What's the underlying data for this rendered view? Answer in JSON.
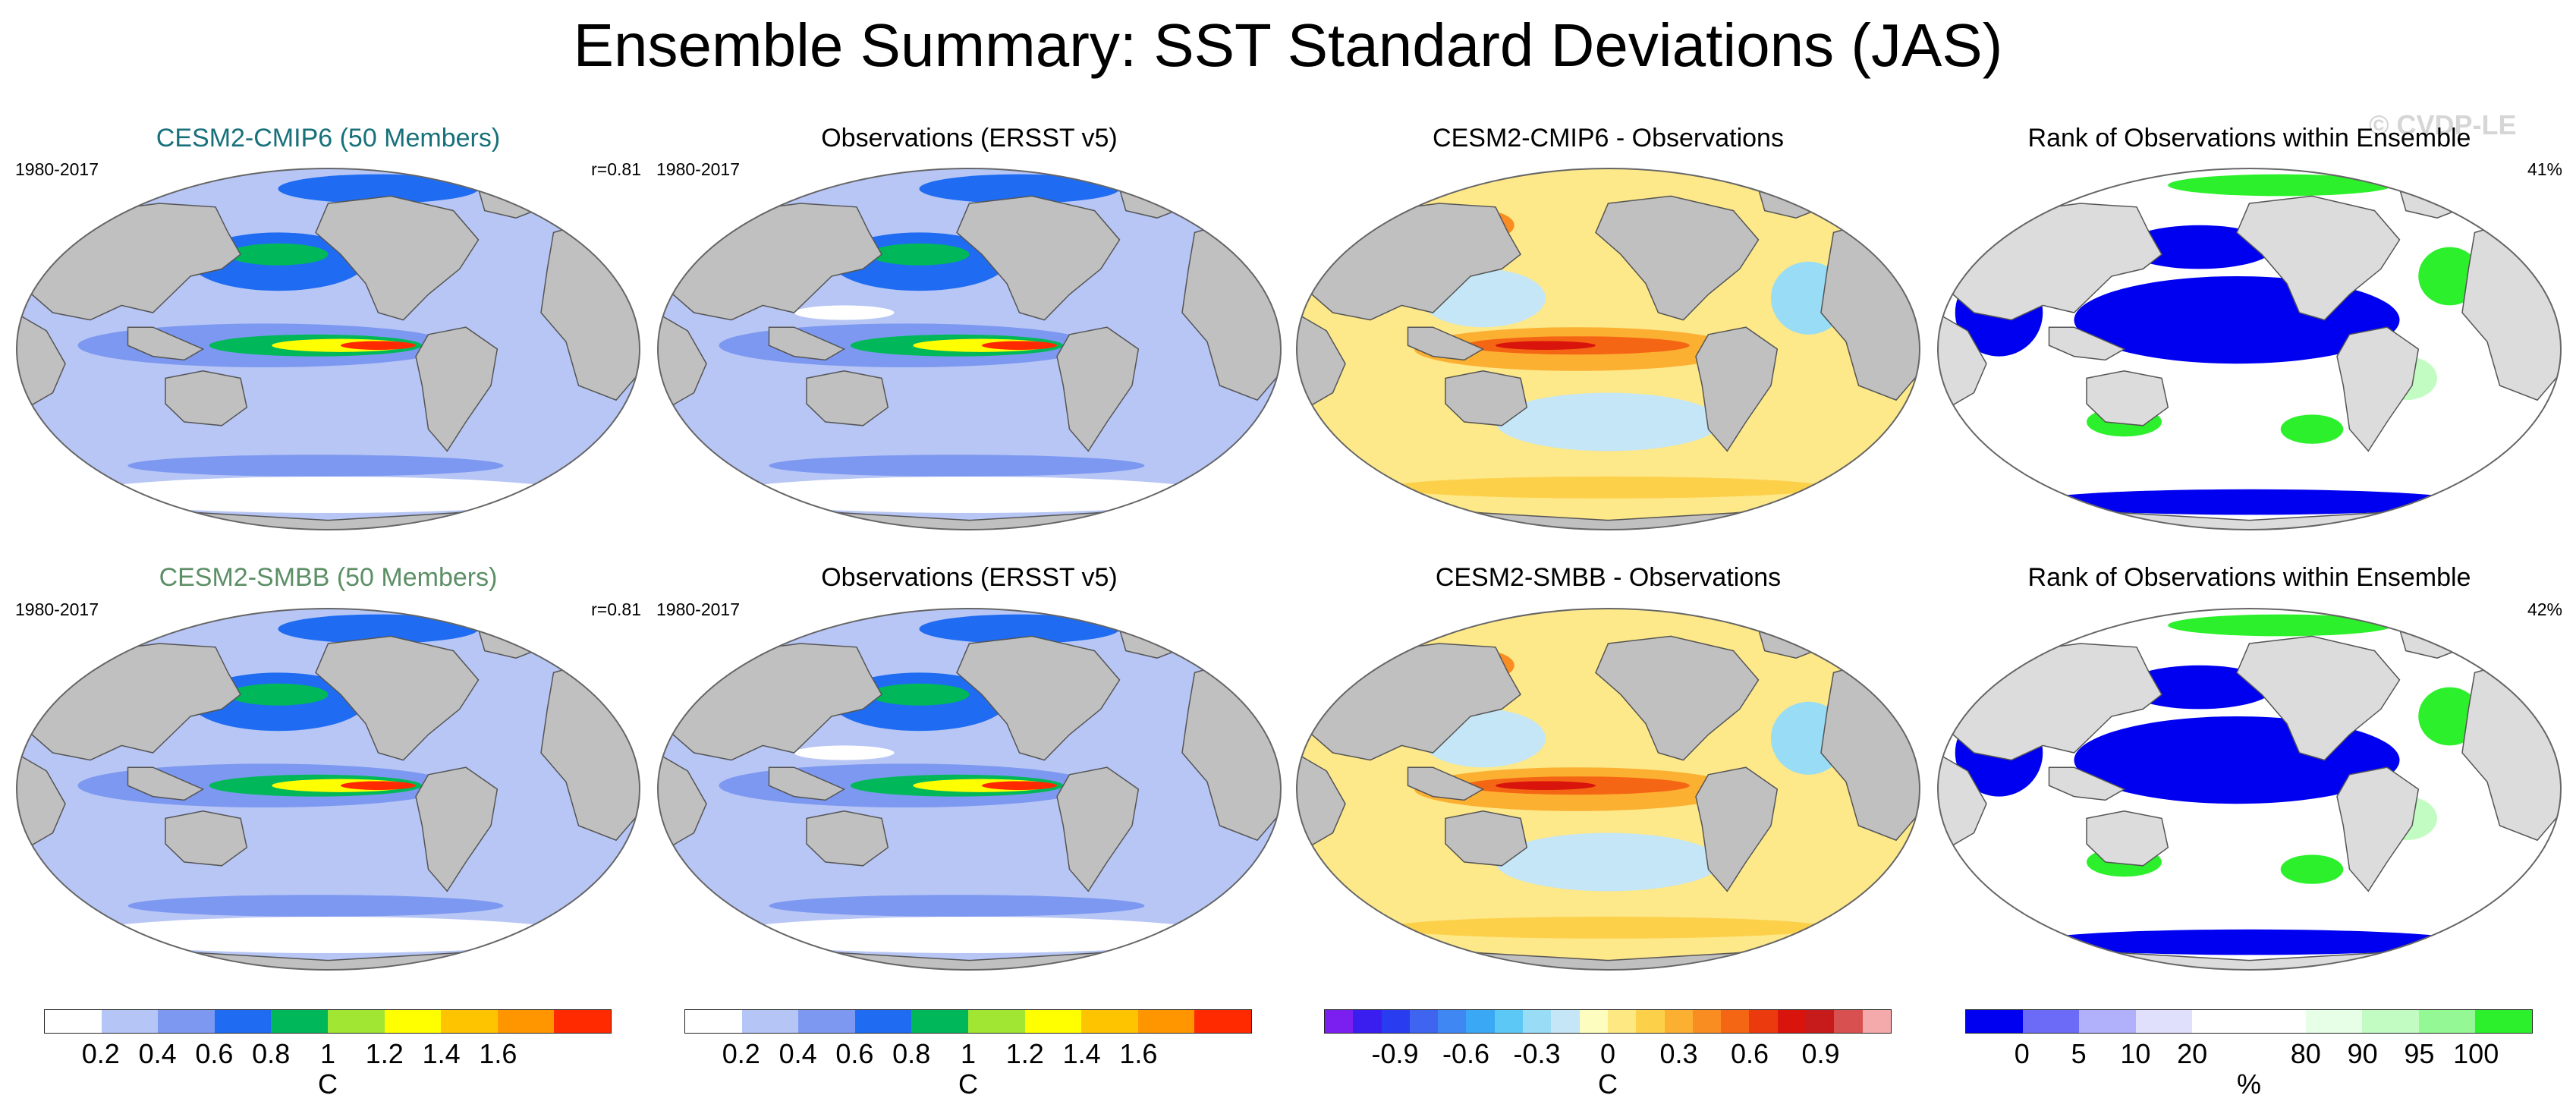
{
  "title": "Ensemble Summary: SST Standard Deviations (JAS)",
  "watermark": "© CVDP-LE",
  "colors": {
    "title_teal": "#17707a",
    "title_green": "#5c8f66",
    "land": "#c0c0c0",
    "ocean_base": "#b7c6f5"
  },
  "rows": [
    {
      "panels": [
        {
          "title": "CESM2-CMIP6 (50 Members)",
          "left": "1980-2017",
          "right": "r=0.81",
          "kind": "std",
          "title_color": "#17707a",
          "icon": "world-map-icon"
        },
        {
          "title": "Observations (ERSST v5)",
          "left": "1980-2017",
          "right": "",
          "kind": "std_obs",
          "title_color": "#000000",
          "icon": "world-map-icon"
        },
        {
          "title": "CESM2-CMIP6 - Observations",
          "left": "",
          "right": "",
          "kind": "diff",
          "title_color": "#000000",
          "icon": "world-map-icon"
        },
        {
          "title": "Rank of Observations within Ensemble",
          "left": "",
          "right": "41%",
          "kind": "rank",
          "title_color": "#000000",
          "icon": "world-map-icon"
        }
      ]
    },
    {
      "panels": [
        {
          "title": "CESM2-SMBB (50 Members)",
          "left": "1980-2017",
          "right": "r=0.81",
          "kind": "std",
          "title_color": "#5c8f66",
          "icon": "world-map-icon"
        },
        {
          "title": "Observations (ERSST v5)",
          "left": "1980-2017",
          "right": "",
          "kind": "std_obs",
          "title_color": "#000000",
          "icon": "world-map-icon"
        },
        {
          "title": "CESM2-SMBB - Observations",
          "left": "",
          "right": "",
          "kind": "diff",
          "title_color": "#000000",
          "icon": "world-map-icon"
        },
        {
          "title": "Rank of Observations within Ensemble",
          "left": "",
          "right": "42%",
          "kind": "rank",
          "title_color": "#000000",
          "icon": "world-map-icon"
        }
      ]
    }
  ],
  "colorbars": [
    {
      "unit": "C",
      "colors": [
        "#ffffff",
        "#b4c5f6",
        "#7d98f0",
        "#1f6cf2",
        "#00b85a",
        "#a0e632",
        "#ffff00",
        "#ffc400",
        "#ff9600",
        "#ff2a00"
      ],
      "ticks": [
        "0.2",
        "0.4",
        "0.6",
        "0.8",
        "1",
        "1.2",
        "1.4",
        "1.6"
      ],
      "tick_positions": [
        1,
        2,
        3,
        4,
        5,
        6,
        7,
        8
      ]
    },
    {
      "unit": "C",
      "colors": [
        "#ffffff",
        "#b4c5f6",
        "#7d98f0",
        "#1f6cf2",
        "#00b85a",
        "#a0e632",
        "#ffff00",
        "#ffc400",
        "#ff9600",
        "#ff2a00"
      ],
      "ticks": [
        "0.2",
        "0.4",
        "0.6",
        "0.8",
        "1",
        "1.2",
        "1.4",
        "1.6"
      ],
      "tick_positions": [
        1,
        2,
        3,
        4,
        5,
        6,
        7,
        8
      ]
    },
    {
      "unit": "C",
      "colors": [
        "#7b1ef0",
        "#3a1ef0",
        "#2a3cf0",
        "#3e64f0",
        "#3f88f3",
        "#3aa8f5",
        "#5cc8f6",
        "#98dcf6",
        "#c4e6f6",
        "#fdfdc0",
        "#fde882",
        "#fdd04a",
        "#fcb032",
        "#f98d22",
        "#f46614",
        "#ea3a0e",
        "#d8140c",
        "#c71a1a",
        "#d95050",
        "#f4aaaa"
      ],
      "ticks": [
        "-0.9",
        "-0.6",
        "-0.3",
        "0",
        "0.3",
        "0.6",
        "0.9"
      ],
      "tick_positions": [
        2.5,
        5,
        7.5,
        10,
        12.5,
        15,
        17.5
      ]
    },
    {
      "unit": "%",
      "colors": [
        "#0000f0",
        "#6b6bf8",
        "#b0b0fb",
        "#e0e0fd",
        "#ffffff",
        "#ffffff",
        "#e6ffe6",
        "#c2fcc2",
        "#94f894",
        "#2cf02c"
      ],
      "ticks": [
        "0",
        "5",
        "10",
        "20",
        "80",
        "90",
        "95",
        "100"
      ],
      "tick_positions": [
        1,
        2,
        3,
        4,
        6,
        7,
        8,
        9
      ]
    }
  ]
}
